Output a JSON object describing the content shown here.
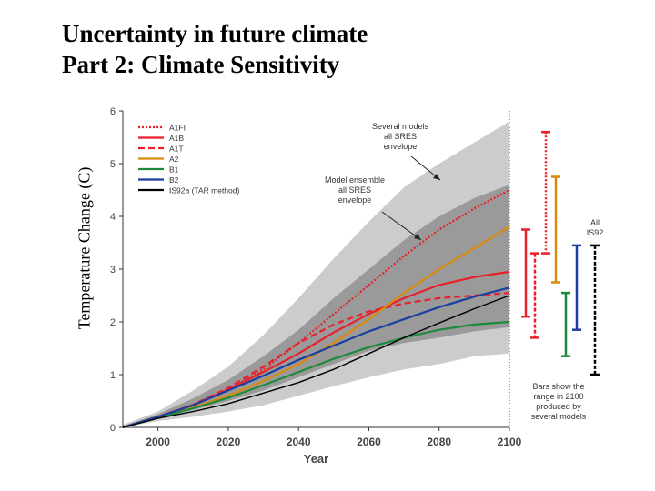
{
  "slide": {
    "title_line1": "Uncertainty in future climate",
    "title_line2": "Part 2: Climate Sensitivity",
    "ylabel": "Temperature Change (C)"
  },
  "chart_data": {
    "type": "line",
    "xlabel": "Year",
    "ylabel": "Temperature Change (C)",
    "xlim": [
      1990,
      2100
    ],
    "ylim": [
      0,
      6
    ],
    "x_ticks": [
      2000,
      2020,
      2040,
      2060,
      2080,
      2100
    ],
    "y_ticks": [
      0,
      1,
      2,
      3,
      4,
      5,
      6
    ],
    "legend_position": "top-left",
    "grid": false,
    "envelopes": [
      {
        "label": "Several models all SRES envelope",
        "color": "#cccccc",
        "x": [
          1990,
          2000,
          2010,
          2020,
          2030,
          2040,
          2050,
          2060,
          2070,
          2080,
          2090,
          2100
        ],
        "upper": [
          0.05,
          0.3,
          0.7,
          1.15,
          1.75,
          2.45,
          3.2,
          3.9,
          4.55,
          5.0,
          5.4,
          5.8
        ],
        "lower": [
          0.0,
          0.12,
          0.2,
          0.3,
          0.42,
          0.6,
          0.78,
          0.95,
          1.1,
          1.2,
          1.35,
          1.4
        ]
      },
      {
        "label": "Model ensemble all SRES envelope",
        "color": "#9a9a9a",
        "x": [
          1990,
          2000,
          2010,
          2020,
          2030,
          2040,
          2050,
          2060,
          2070,
          2080,
          2090,
          2100
        ],
        "upper": [
          0.02,
          0.25,
          0.55,
          0.9,
          1.35,
          1.85,
          2.45,
          3.0,
          3.55,
          4.0,
          4.35,
          4.6
        ],
        "lower": [
          0.0,
          0.18,
          0.33,
          0.5,
          0.7,
          0.95,
          1.2,
          1.45,
          1.6,
          1.7,
          1.82,
          1.9
        ]
      }
    ],
    "series": [
      {
        "name": "A1FI",
        "color": "#e8202a",
        "dash": "2,2",
        "x": [
          1990,
          2000,
          2010,
          2020,
          2030,
          2040,
          2050,
          2060,
          2070,
          2080,
          2090,
          2100
        ],
        "values": [
          0.0,
          0.2,
          0.42,
          0.72,
          1.1,
          1.6,
          2.15,
          2.7,
          3.25,
          3.75,
          4.15,
          4.5
        ]
      },
      {
        "name": "A1B",
        "color": "#e8202a",
        "dash": "",
        "x": [
          1990,
          2000,
          2010,
          2020,
          2030,
          2040,
          2050,
          2060,
          2070,
          2080,
          2090,
          2100
        ],
        "values": [
          0.0,
          0.2,
          0.42,
          0.72,
          1.05,
          1.4,
          1.8,
          2.15,
          2.45,
          2.7,
          2.85,
          2.95
        ]
      },
      {
        "name": "A1T",
        "color": "#e8202a",
        "dash": "7,4",
        "x": [
          1990,
          2000,
          2010,
          2020,
          2030,
          2040,
          2050,
          2060,
          2070,
          2080,
          2090,
          2100
        ],
        "values": [
          0.0,
          0.2,
          0.43,
          0.75,
          1.15,
          1.6,
          1.95,
          2.2,
          2.35,
          2.45,
          2.5,
          2.55
        ]
      },
      {
        "name": "A2",
        "color": "#d98a0a",
        "dash": "",
        "x": [
          1990,
          2000,
          2010,
          2020,
          2030,
          2040,
          2050,
          2060,
          2070,
          2080,
          2090,
          2100
        ],
        "values": [
          0.0,
          0.19,
          0.38,
          0.6,
          0.88,
          1.2,
          1.6,
          2.05,
          2.55,
          3.0,
          3.4,
          3.8
        ]
      },
      {
        "name": "B1",
        "color": "#1d8a3a",
        "dash": "",
        "x": [
          1990,
          2000,
          2010,
          2020,
          2030,
          2040,
          2050,
          2060,
          2070,
          2080,
          2090,
          2100
        ],
        "values": [
          0.0,
          0.18,
          0.36,
          0.56,
          0.8,
          1.05,
          1.3,
          1.52,
          1.7,
          1.85,
          1.95,
          2.0
        ]
      },
      {
        "name": "B2",
        "color": "#1a3fa0",
        "dash": "",
        "x": [
          1990,
          2000,
          2010,
          2020,
          2030,
          2040,
          2050,
          2060,
          2070,
          2080,
          2090,
          2100
        ],
        "values": [
          0.0,
          0.2,
          0.42,
          0.7,
          0.98,
          1.28,
          1.55,
          1.82,
          2.05,
          2.28,
          2.48,
          2.65
        ]
      },
      {
        "name": "IS92a (TAR method)",
        "color": "#000000",
        "dash": "",
        "x": [
          1990,
          2000,
          2010,
          2020,
          2030,
          2040,
          2050,
          2060,
          2070,
          2080,
          2090,
          2100
        ],
        "values": [
          0.0,
          0.17,
          0.3,
          0.45,
          0.65,
          0.85,
          1.1,
          1.4,
          1.7,
          1.98,
          2.25,
          2.5
        ]
      }
    ],
    "range_bars": [
      {
        "name": "A1B",
        "color": "#e8202a",
        "dash": "",
        "low": 2.1,
        "high": 3.75
      },
      {
        "name": "A1T",
        "color": "#e8202a",
        "dash": "4,2",
        "low": 1.7,
        "high": 3.3
      },
      {
        "name": "A1FI",
        "color": "#e8202a",
        "dash": "2,2",
        "low": 3.3,
        "high": 5.6
      },
      {
        "name": "A2",
        "color": "#d98a0a",
        "dash": "",
        "low": 2.75,
        "high": 4.75
      },
      {
        "name": "B1",
        "color": "#1d8a3a",
        "dash": "",
        "low": 1.35,
        "high": 2.55
      },
      {
        "name": "B2",
        "color": "#1a3fa0",
        "dash": "",
        "low": 1.85,
        "high": 3.45
      },
      {
        "name": "All IS92",
        "color": "#000000",
        "dash": "4,2",
        "low": 1.0,
        "high": 3.45
      }
    ],
    "annotations": {
      "several_models": [
        "Several models",
        "all SRES",
        "envelope"
      ],
      "model_ensemble": [
        "Model ensemble",
        "all SRES",
        "envelope"
      ],
      "all_is92": [
        "All",
        "IS92"
      ],
      "bars_note": [
        "Bars show the",
        "range in 2100",
        "produced by",
        "several models"
      ]
    }
  }
}
